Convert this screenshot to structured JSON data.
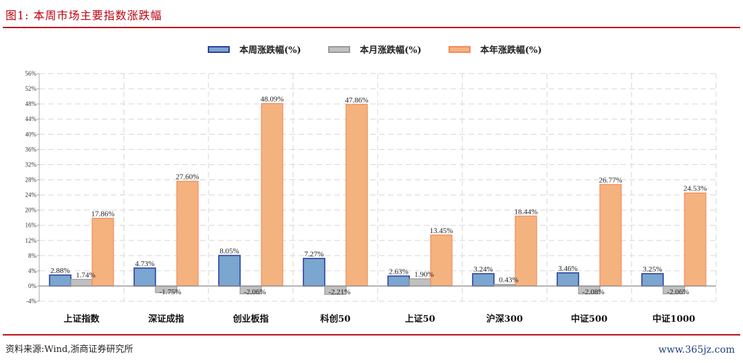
{
  "figure": {
    "title": "图1:   本周市场主要指数涨跌幅",
    "source": "资料来源:Wind,浙商证券研究所",
    "watermark": "www.365jz.com"
  },
  "legend": [
    {
      "label": "本周涨跌幅(%)",
      "fill": "#7aa6cf",
      "stroke": "#2e3fa0"
    },
    {
      "label": "本月涨跌幅(%)",
      "fill": "#c0c0c0",
      "stroke": "#9a9a9a"
    },
    {
      "label": "本年涨跌幅(%)",
      "fill": "#f4b27f",
      "stroke": "#f48a5a"
    }
  ],
  "chart_data": {
    "type": "bar",
    "title": "本周市场主要指数涨跌幅",
    "xlabel": "",
    "ylabel": "",
    "categories": [
      "上证指数",
      "深证成指",
      "创业板指",
      "科创50",
      "上证50",
      "沪深300",
      "中证500",
      "中证1000"
    ],
    "series": [
      {
        "name": "本周涨跌幅(%)",
        "values": [
          2.88,
          4.73,
          8.05,
          7.27,
          2.63,
          3.24,
          3.46,
          3.25
        ],
        "labels": [
          "2.88%",
          "4.73%",
          "8.05%",
          "7.27%",
          "2.63%",
          "3.24%",
          "3.46%",
          "3.25%"
        ]
      },
      {
        "name": "本月涨跌幅(%)",
        "values": [
          1.74,
          -1.75,
          -2.06,
          -2.21,
          1.9,
          0.43,
          -2.08,
          -2.06
        ],
        "labels": [
          "1.74%",
          "-1.75%",
          "-2.06%",
          "-2.21%",
          "1.90%",
          "0.43%",
          "-2.08%",
          "-2.06%"
        ]
      },
      {
        "name": "本年涨跌幅(%)",
        "values": [
          17.86,
          27.6,
          48.09,
          47.86,
          13.45,
          18.44,
          26.77,
          24.53
        ],
        "labels": [
          "17.86%",
          "27.60%",
          "48.09%",
          "47.86%",
          "13.45%",
          "18.44%",
          "26.77%",
          "24.53%"
        ]
      }
    ],
    "yticks": [
      "56%",
      "52%",
      "48%",
      "44%",
      "40%",
      "36%",
      "32%",
      "28%",
      "24%",
      "20%",
      "16%",
      "12%",
      "8%",
      "4%",
      "0%",
      "-4%"
    ],
    "ylim": [
      -4,
      56
    ],
    "grid": true,
    "legend_position": "top"
  }
}
